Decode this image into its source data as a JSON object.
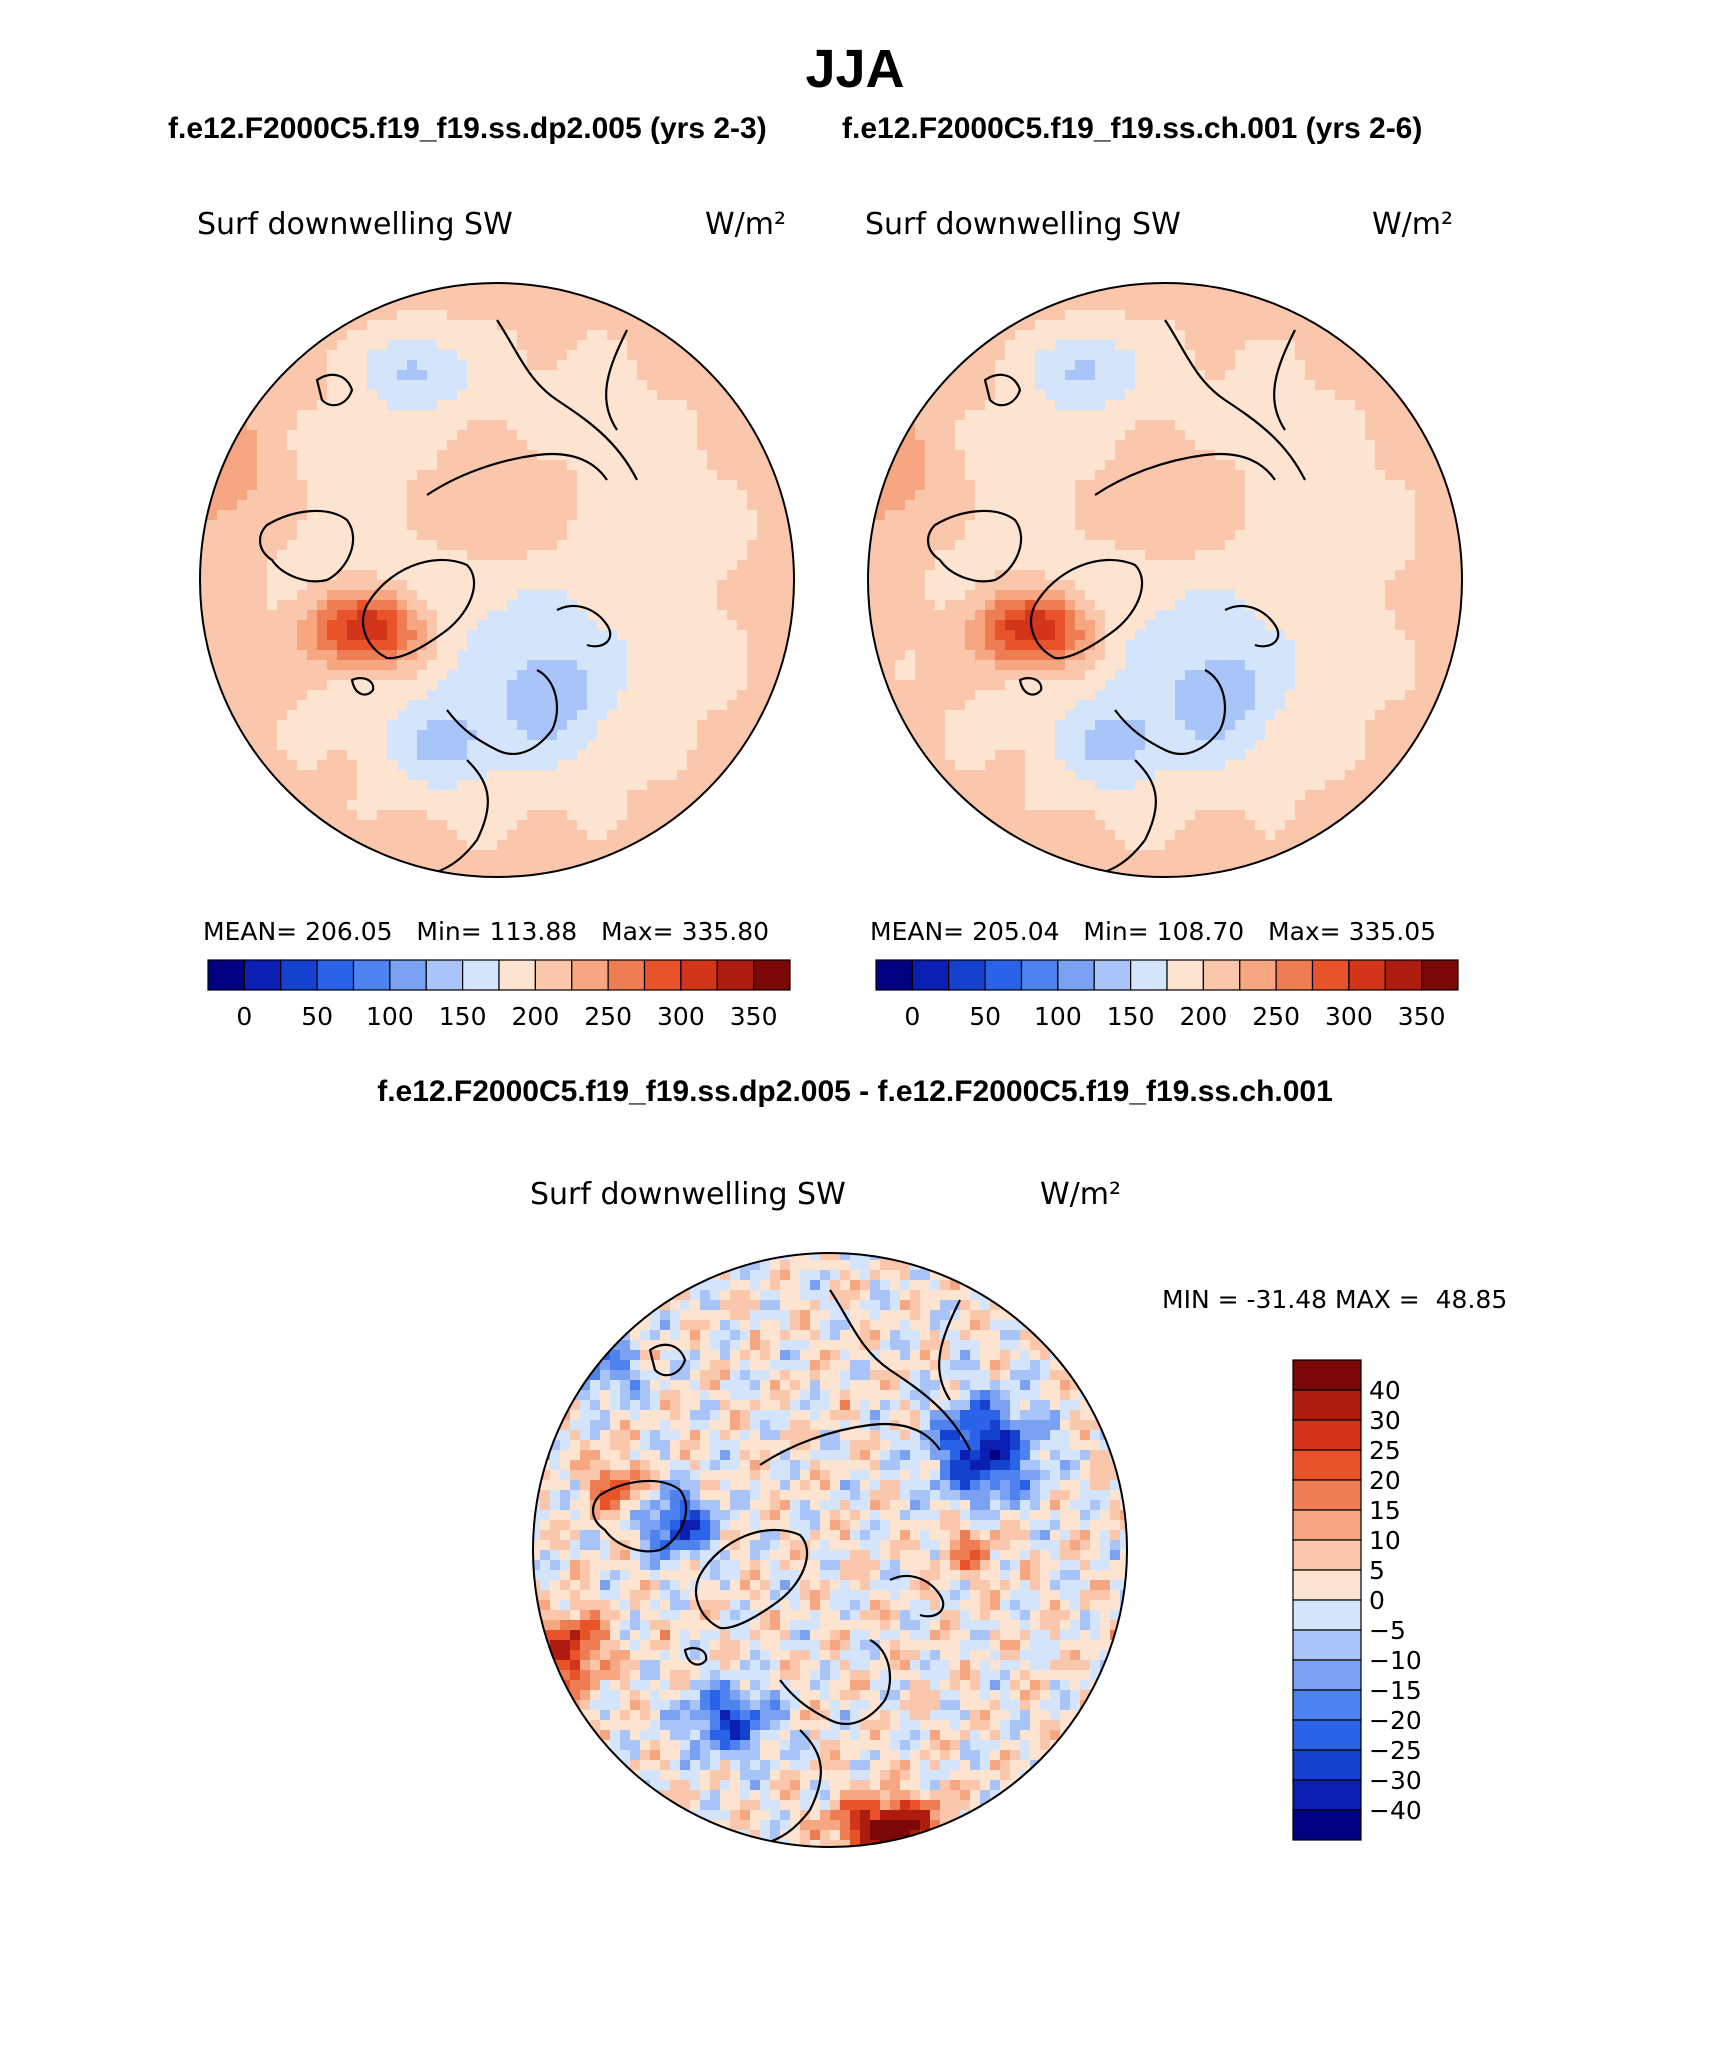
{
  "page": {
    "season_title": "JJA",
    "case_left_header": "f.e12.F2000C5.f19_f19.ss.dp2.005 (yrs 2-3)",
    "case_right_header": "f.e12.F2000C5.f19_f19.ss.ch.001 (yrs 2-6)",
    "diff_header": "f.e12.F2000C5.f19_f19.ss.dp2.005 - f.e12.F2000C5.f19_f19.ss.ch.001"
  },
  "chart_data": [
    {
      "type": "heatmap",
      "projection": "north polar stereographic",
      "title": "Surf downwelling SW",
      "units": "W/m²",
      "stats": {
        "mean_label": "MEAN=",
        "mean": "206.05",
        "min_label": "Min=",
        "min": "113.88",
        "max_label": "Max=",
        "max": "335.80"
      },
      "colorbar": {
        "orientation": "horizontal",
        "levels": [
          0,
          25,
          50,
          75,
          100,
          125,
          150,
          175,
          200,
          225,
          250,
          275,
          300,
          325,
          350
        ],
        "tick_labels": [
          "0",
          "50",
          "100",
          "150",
          "200",
          "250",
          "300",
          "350"
        ]
      }
    },
    {
      "type": "heatmap",
      "projection": "north polar stereographic",
      "title": "Surf downwelling SW",
      "units": "W/m²",
      "stats": {
        "mean_label": "MEAN=",
        "mean": "205.04",
        "min_label": "Min=",
        "min": "108.70",
        "max_label": "Max=",
        "max": "335.05"
      },
      "colorbar": {
        "orientation": "horizontal",
        "levels": [
          0,
          25,
          50,
          75,
          100,
          125,
          150,
          175,
          200,
          225,
          250,
          275,
          300,
          325,
          350
        ],
        "tick_labels": [
          "0",
          "50",
          "100",
          "150",
          "200",
          "250",
          "300",
          "350"
        ]
      }
    },
    {
      "type": "heatmap",
      "projection": "north polar stereographic",
      "title": "Surf downwelling SW",
      "units": "W/m²",
      "stats": {
        "min_label": "MIN =",
        "min": "-31.48",
        "max_label": "MAX =",
        "max": "48.85"
      },
      "colorbar": {
        "orientation": "vertical",
        "levels": [
          -40,
          -30,
          -25,
          -20,
          -15,
          -10,
          -5,
          0,
          5,
          10,
          15,
          20,
          25,
          30,
          40
        ],
        "tick_labels": [
          "40",
          "30",
          "25",
          "20",
          "15",
          "10",
          "5",
          "0",
          "−5",
          "−10",
          "−15",
          "−20",
          "−25",
          "−30",
          "−40"
        ]
      }
    }
  ],
  "colors": {
    "abs_scale": [
      "#000080",
      "#0a1fb2",
      "#1541cf",
      "#2a63e8",
      "#4e82ee",
      "#7ba2f2",
      "#a8c4f8",
      "#d3e4fb",
      "#fde4d1",
      "#fbc7ac",
      "#f6a681",
      "#ef7d54",
      "#e8532a",
      "#d2351a",
      "#ad1c0e",
      "#7a0806"
    ],
    "diff_scale": [
      "#7a0806",
      "#ad1c0e",
      "#d2351a",
      "#e8532a",
      "#ef7d54",
      "#f6a681",
      "#fbc7ac",
      "#fde4d1",
      "#d3e4fb",
      "#a8c4f8",
      "#7ba2f2",
      "#4e82ee",
      "#2a63e8",
      "#1541cf",
      "#0a1fb2",
      "#000080"
    ]
  }
}
